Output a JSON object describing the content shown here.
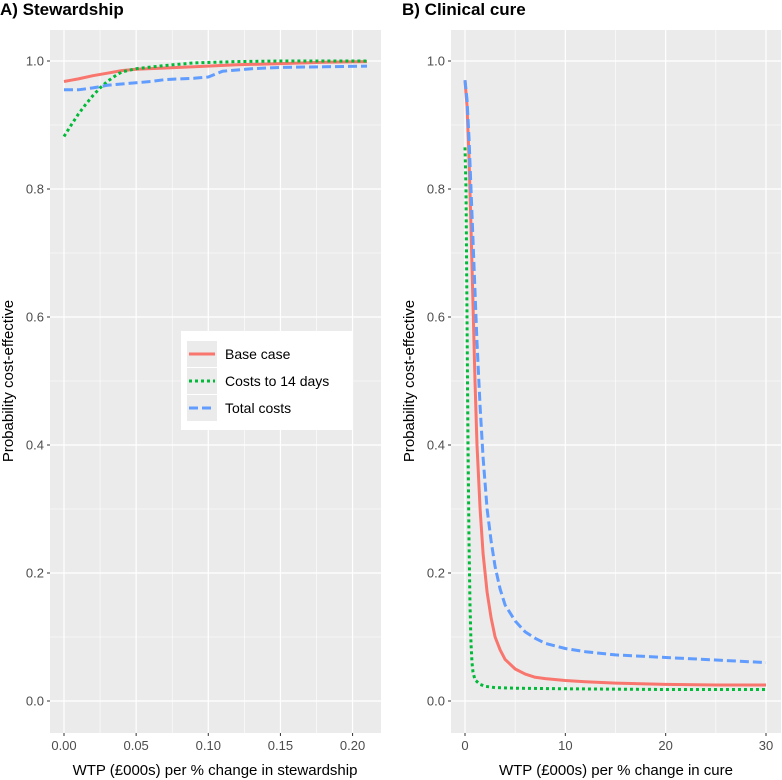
{
  "colors": {
    "base": "#F8766D",
    "costs14": "#00BA38",
    "total": "#619CFF",
    "panel": "#EBEBEB",
    "grid": "#FFFFFF"
  },
  "legend": [
    "Base case",
    "Costs to 14 days",
    "Total costs"
  ],
  "chart_data": [
    {
      "type": "line",
      "title": "A) Stewardship",
      "xlabel": "WTP (£000s) per % change in stewardship",
      "ylabel": "Probability cost-effective",
      "xlim": [
        0,
        0.21
      ],
      "ylim": [
        0,
        1
      ],
      "xticks": [
        0,
        0.05,
        0.1,
        0.15,
        0.2
      ],
      "xtick_labels": [
        "0.00",
        "0.05",
        "0.10",
        "0.15",
        "0.20"
      ],
      "yticks": [
        0,
        0.2,
        0.4,
        0.6,
        0.8,
        1
      ],
      "ytick_labels": [
        "0.0",
        "0.2",
        "0.4",
        "0.6",
        "0.8",
        "1.0"
      ],
      "series": [
        {
          "name": "Base case",
          "x": [
            0,
            0.005,
            0.01,
            0.02,
            0.03,
            0.04,
            0.05,
            0.07,
            0.09,
            0.12,
            0.15,
            0.18,
            0.21
          ],
          "y": [
            0.968,
            0.97,
            0.972,
            0.977,
            0.981,
            0.985,
            0.987,
            0.989,
            0.991,
            0.994,
            0.996,
            0.998,
            0.999
          ]
        },
        {
          "name": "Costs to 14 days",
          "x": [
            0,
            0.005,
            0.01,
            0.015,
            0.02,
            0.025,
            0.03,
            0.035,
            0.04,
            0.05,
            0.07,
            0.09,
            0.12,
            0.15,
            0.18,
            0.21
          ],
          "y": [
            0.882,
            0.9,
            0.917,
            0.932,
            0.946,
            0.958,
            0.968,
            0.976,
            0.983,
            0.988,
            0.993,
            0.997,
            0.999,
            1.0,
            1.0,
            1.0
          ]
        },
        {
          "name": "Total costs",
          "x": [
            0,
            0.01,
            0.02,
            0.03,
            0.04,
            0.05,
            0.06,
            0.07,
            0.08,
            0.09,
            0.1,
            0.11,
            0.13,
            0.15,
            0.18,
            0.21
          ],
          "y": [
            0.955,
            0.955,
            0.958,
            0.962,
            0.964,
            0.966,
            0.968,
            0.971,
            0.972,
            0.973,
            0.975,
            0.984,
            0.988,
            0.99,
            0.991,
            0.992
          ]
        }
      ]
    },
    {
      "type": "line",
      "title": "B) Clinical cure",
      "xlabel": "WTP (£000s) per % change in cure",
      "ylabel": "Probability cost-effective",
      "xlim": [
        0,
        30
      ],
      "ylim": [
        0,
        1
      ],
      "xticks": [
        0,
        10,
        20,
        30
      ],
      "xtick_labels": [
        "0",
        "10",
        "20",
        "30"
      ],
      "yticks": [
        0,
        0.2,
        0.4,
        0.6,
        0.8,
        1
      ],
      "ytick_labels": [
        "0.0",
        "0.2",
        "0.4",
        "0.6",
        "0.8",
        "1.0"
      ],
      "series": [
        {
          "name": "Base case",
          "x": [
            0,
            0.2,
            0.4,
            0.6,
            0.8,
            1.0,
            1.2,
            1.5,
            1.8,
            2.2,
            2.6,
            3.0,
            3.5,
            4.0,
            5.0,
            6.0,
            7.0,
            8.0,
            10.0,
            12.0,
            15.0,
            20.0,
            25.0,
            30.0
          ],
          "y": [
            0.97,
            0.93,
            0.85,
            0.74,
            0.62,
            0.5,
            0.4,
            0.3,
            0.23,
            0.17,
            0.13,
            0.1,
            0.08,
            0.065,
            0.05,
            0.042,
            0.037,
            0.035,
            0.032,
            0.03,
            0.028,
            0.026,
            0.025,
            0.025
          ]
        },
        {
          "name": "Costs to 14 days",
          "x": [
            0,
            0.1,
            0.2,
            0.3,
            0.4,
            0.5,
            0.6,
            0.7,
            0.8,
            1.0,
            1.5,
            2.0,
            3.0,
            5.0,
            10.0,
            20.0,
            30.0
          ],
          "y": [
            0.865,
            0.8,
            0.6,
            0.4,
            0.25,
            0.15,
            0.09,
            0.06,
            0.045,
            0.033,
            0.026,
            0.023,
            0.021,
            0.02,
            0.019,
            0.018,
            0.018
          ]
        },
        {
          "name": "Total costs",
          "x": [
            0,
            0.2,
            0.4,
            0.6,
            0.8,
            1.0,
            1.2,
            1.5,
            1.8,
            2.2,
            2.6,
            3.0,
            3.5,
            4.0,
            5.0,
            6.0,
            7.0,
            8.0,
            10.0,
            12.0,
            15.0,
            20.0,
            25.0,
            30.0
          ],
          "y": [
            0.97,
            0.94,
            0.88,
            0.8,
            0.72,
            0.64,
            0.56,
            0.46,
            0.38,
            0.3,
            0.25,
            0.21,
            0.175,
            0.15,
            0.125,
            0.108,
            0.098,
            0.09,
            0.082,
            0.077,
            0.072,
            0.068,
            0.064,
            0.06
          ]
        }
      ]
    }
  ]
}
